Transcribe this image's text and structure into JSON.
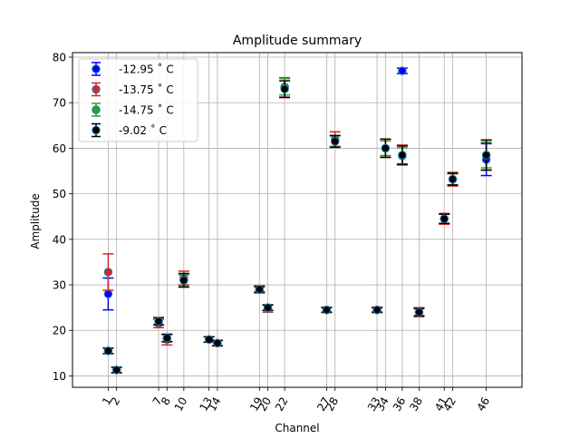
{
  "chart_data": {
    "type": "scatter",
    "title": "Amplitude summary",
    "xlabel": "Channel",
    "ylabel": "Amplitude",
    "xlim": [
      -3.25,
      50.25
    ],
    "ylim": [
      7.5,
      81
    ],
    "xticks": [
      1,
      2,
      7,
      8,
      10,
      13,
      14,
      19,
      20,
      22,
      27,
      28,
      33,
      34,
      36,
      38,
      41,
      42,
      46
    ],
    "xtick_rotation": 60,
    "yticks": [
      10,
      20,
      30,
      40,
      50,
      60,
      70,
      80
    ],
    "grid": true,
    "legend_position": "top-left",
    "series": [
      {
        "name": "-12.95 ˚ C",
        "color": "#0000ff",
        "points": [
          {
            "x": 1,
            "y": 28.0,
            "err": 3.5
          },
          {
            "x": 36,
            "y": 77.0,
            "err": 0.6
          },
          {
            "x": 46,
            "y": 57.5,
            "err": 3.5
          }
        ]
      },
      {
        "name": "-13.75 ˚ C",
        "color": "#d62728",
        "points": [
          {
            "x": 1,
            "y": 32.8,
            "err": 4.0
          },
          {
            "x": 7,
            "y": 21.5,
            "err": 0.9
          },
          {
            "x": 8,
            "y": 18.0,
            "err": 1.2
          },
          {
            "x": 10,
            "y": 31.5,
            "err": 1.5
          },
          {
            "x": 13,
            "y": 18.0,
            "err": 0.6
          },
          {
            "x": 14,
            "y": 17.2,
            "err": 0.6
          },
          {
            "x": 19,
            "y": 29.0,
            "err": 0.8
          },
          {
            "x": 20,
            "y": 24.8,
            "err": 0.8
          },
          {
            "x": 22,
            "y": 73.3,
            "err": 2.2
          },
          {
            "x": 27,
            "y": 24.5,
            "err": 0.6
          },
          {
            "x": 28,
            "y": 62.0,
            "err": 1.6
          },
          {
            "x": 33,
            "y": 24.5,
            "err": 0.6
          },
          {
            "x": 34,
            "y": 60.0,
            "err": 2.0
          },
          {
            "x": 36,
            "y": 58.5,
            "err": 2.2
          },
          {
            "x": 38,
            "y": 24.0,
            "err": 1.0
          },
          {
            "x": 41,
            "y": 44.5,
            "err": 1.2
          },
          {
            "x": 42,
            "y": 53.2,
            "err": 1.5
          },
          {
            "x": 46,
            "y": 58.5,
            "err": 3.3
          }
        ]
      },
      {
        "name": "-14.75 ˚ C",
        "color": "#2ca02c",
        "points": [
          {
            "x": 1,
            "y": 15.5,
            "err": 0.6
          },
          {
            "x": 2,
            "y": 11.3,
            "err": 0.6
          },
          {
            "x": 7,
            "y": 22.0,
            "err": 0.8
          },
          {
            "x": 8,
            "y": 18.3,
            "err": 0.8
          },
          {
            "x": 10,
            "y": 31.0,
            "err": 1.2
          },
          {
            "x": 13,
            "y": 18.0,
            "err": 0.6
          },
          {
            "x": 14,
            "y": 17.2,
            "err": 0.6
          },
          {
            "x": 19,
            "y": 29.0,
            "err": 0.6
          },
          {
            "x": 20,
            "y": 25.0,
            "err": 0.6
          },
          {
            "x": 22,
            "y": 73.5,
            "err": 1.8
          },
          {
            "x": 27,
            "y": 24.5,
            "err": 0.5
          },
          {
            "x": 28,
            "y": 61.5,
            "err": 1.2
          },
          {
            "x": 33,
            "y": 24.5,
            "err": 0.5
          },
          {
            "x": 34,
            "y": 60.0,
            "err": 1.6
          },
          {
            "x": 36,
            "y": 58.3,
            "err": 1.8
          },
          {
            "x": 38,
            "y": 24.0,
            "err": 0.8
          },
          {
            "x": 41,
            "y": 44.5,
            "err": 1.0
          },
          {
            "x": 42,
            "y": 53.2,
            "err": 1.2
          },
          {
            "x": 46,
            "y": 58.5,
            "err": 2.8
          }
        ]
      },
      {
        "name": "-9.02 ˚ C",
        "color": "#000000",
        "points": [
          {
            "x": 1,
            "y": 15.5,
            "err": 0.6
          },
          {
            "x": 2,
            "y": 11.3,
            "err": 0.6
          },
          {
            "x": 7,
            "y": 22.0,
            "err": 0.8
          },
          {
            "x": 8,
            "y": 18.3,
            "err": 0.8
          },
          {
            "x": 10,
            "y": 31.0,
            "err": 1.5
          },
          {
            "x": 13,
            "y": 18.0,
            "err": 0.6
          },
          {
            "x": 14,
            "y": 17.2,
            "err": 0.6
          },
          {
            "x": 19,
            "y": 29.0,
            "err": 0.6
          },
          {
            "x": 20,
            "y": 25.0,
            "err": 0.6
          },
          {
            "x": 22,
            "y": 73.0,
            "err": 1.8
          },
          {
            "x": 27,
            "y": 24.5,
            "err": 0.5
          },
          {
            "x": 28,
            "y": 61.5,
            "err": 1.3
          },
          {
            "x": 33,
            "y": 24.5,
            "err": 0.5
          },
          {
            "x": 34,
            "y": 60.0,
            "err": 2.0
          },
          {
            "x": 36,
            "y": 58.5,
            "err": 2.0
          },
          {
            "x": 38,
            "y": 24.0,
            "err": 0.8
          },
          {
            "x": 41,
            "y": 44.5,
            "err": 1.0
          },
          {
            "x": 42,
            "y": 53.2,
            "err": 1.3
          },
          {
            "x": 46,
            "y": 58.5,
            "err": 3.3
          }
        ]
      }
    ]
  }
}
